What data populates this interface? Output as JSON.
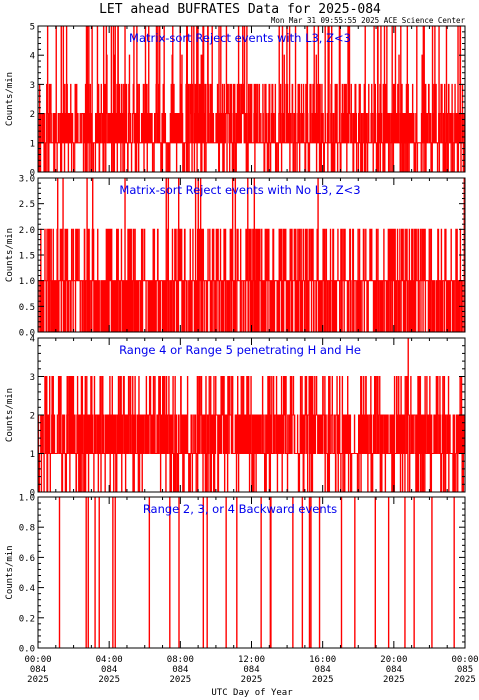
{
  "header": {
    "title": "LET ahead BUFRATES Data for 2025-084",
    "timestamp": "Mon Mar 31 09:55:55 2025 ACE Science Center"
  },
  "colors": {
    "series": "#ff0000",
    "panel_title": "#0000ee",
    "axis": "#000000"
  },
  "chart_data": [
    {
      "type": "line",
      "title": "Matrix-sort Reject events with L3, Z<3",
      "ylabel": "Counts/min",
      "ylim": [
        0,
        5
      ],
      "yticks": [
        "0",
        "1",
        "2",
        "3",
        "4",
        "5"
      ],
      "xlim": [
        0,
        1440
      ],
      "series": [
        {
          "values_note_free": true,
          "seed": 11,
          "base": 1,
          "p": [
            0.14,
            0.46,
            0.22,
            0.12,
            0.005,
            0.004
          ],
          "spikes": [
            [
              690,
              5
            ],
            [
              308,
              4
            ]
          ]
        }
      ]
    },
    {
      "type": "line",
      "title": "Matrix-sort Reject events with No L3, Z<3",
      "ylabel": "Counts/min",
      "ylim": [
        0,
        3
      ],
      "yticks": [
        "0.0",
        "0.5",
        "1.0",
        "1.5",
        "2.0",
        "2.5",
        "3.0"
      ],
      "xlim": [
        0,
        1440
      ],
      "series": [
        {
          "seed": 23,
          "base": 1,
          "p": [
            0.3,
            0.52,
            0.17,
            0.01
          ],
          "spikes": [
            [
              432,
              3
            ],
            [
              540,
              3
            ],
            [
              548,
              3
            ]
          ]
        }
      ]
    },
    {
      "type": "line",
      "title": "Range 4 or Range 5 penetrating H and He",
      "ylabel": "Counts/min",
      "ylim": [
        0,
        4
      ],
      "yticks": [
        "0",
        "1",
        "2",
        "3",
        "4"
      ],
      "xlim": [
        0,
        1440
      ],
      "series": [
        {
          "seed": 37,
          "base": 1,
          "p": [
            0.1,
            0.46,
            0.32,
            0.12
          ],
          "spikes": [
            [
              1248,
              4
            ]
          ]
        }
      ]
    },
    {
      "type": "line",
      "title": "Range 2, 3, or 4 Backward events",
      "ylabel": "Counts/min",
      "ylim": [
        0,
        1
      ],
      "yticks": [
        "0.0",
        "0.2",
        "0.4",
        "0.6",
        "0.8",
        "1.0"
      ],
      "xlim": [
        0,
        1440
      ],
      "series": [
        {
          "seed": 53,
          "base": 0,
          "p": [
            0.975,
            0.025
          ],
          "spikes": []
        }
      ]
    }
  ],
  "xaxis": {
    "label": "UTC Day of Year",
    "ticks": [
      {
        "x": 0,
        "l1": "00:00",
        "l2": "084",
        "l3": "2025"
      },
      {
        "x": 240,
        "l1": "04:00",
        "l2": "084",
        "l3": "2025"
      },
      {
        "x": 480,
        "l1": "08:00",
        "l2": "084",
        "l3": "2025"
      },
      {
        "x": 720,
        "l1": "12:00",
        "l2": "084",
        "l3": "2025"
      },
      {
        "x": 960,
        "l1": "16:00",
        "l2": "084",
        "l3": "2025"
      },
      {
        "x": 1200,
        "l1": "20:00",
        "l2": "084",
        "l3": "2025"
      },
      {
        "x": 1440,
        "l1": "00:00",
        "l2": "085",
        "l3": "2025"
      }
    ]
  }
}
